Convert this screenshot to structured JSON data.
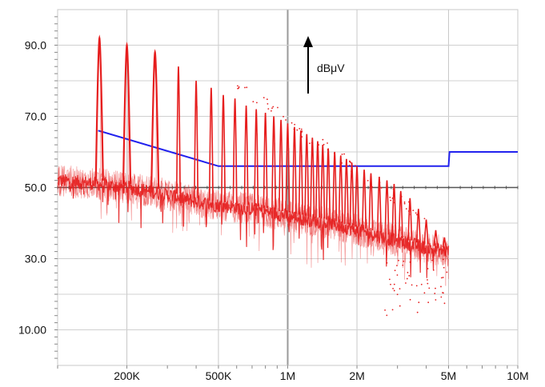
{
  "chart_data": {
    "type": "line",
    "x_scale": "log",
    "xlim": [
      100000,
      10000000
    ],
    "ylim": [
      0,
      100
    ],
    "unit_annotation": "dBμV",
    "x_ticks": [
      {
        "value": 200000,
        "label": "200K"
      },
      {
        "value": 500000,
        "label": "500K"
      },
      {
        "value": 1000000,
        "label": "1M"
      },
      {
        "value": 2000000,
        "label": "2M"
      },
      {
        "value": 5000000,
        "label": "5M"
      },
      {
        "value": 10000000,
        "label": "10M"
      }
    ],
    "y_ticks": [
      {
        "value": 10,
        "label": "10.00"
      },
      {
        "value": 30,
        "label": "30.0"
      },
      {
        "value": 50,
        "label": "50.0"
      },
      {
        "value": 70,
        "label": "70.0"
      },
      {
        "value": 90,
        "label": "90.0"
      }
    ],
    "grid": true,
    "reference_line": {
      "y": 50,
      "color": "#555555"
    },
    "limit_line": {
      "color": "#2222ee",
      "points": [
        [
          150000,
          66
        ],
        [
          500000,
          56
        ],
        [
          5000000,
          56
        ],
        [
          5050000,
          60
        ],
        [
          10000000,
          60
        ]
      ]
    },
    "series": [
      {
        "color": "#e61e1e",
        "peaks": [
          {
            "x": 152000,
            "y": 92
          },
          {
            "x": 200000,
            "y": 90
          },
          {
            "x": 265000,
            "y": 88
          },
          {
            "x": 335000,
            "y": 84
          },
          {
            "x": 400000,
            "y": 80
          },
          {
            "x": 465000,
            "y": 78
          },
          {
            "x": 525000,
            "y": 76
          },
          {
            "x": 590000,
            "y": 75
          },
          {
            "x": 660000,
            "y": 73
          },
          {
            "x": 730000,
            "y": 72
          },
          {
            "x": 800000,
            "y": 71
          },
          {
            "x": 870000,
            "y": 70
          },
          {
            "x": 935000,
            "y": 69
          },
          {
            "x": 1000000,
            "y": 68
          },
          {
            "x": 1070000,
            "y": 67
          },
          {
            "x": 1140000,
            "y": 66
          },
          {
            "x": 1210000,
            "y": 65
          },
          {
            "x": 1280000,
            "y": 64
          },
          {
            "x": 1350000,
            "y": 63
          },
          {
            "x": 1420000,
            "y": 62
          },
          {
            "x": 1500000,
            "y": 61
          },
          {
            "x": 1600000,
            "y": 60
          },
          {
            "x": 1700000,
            "y": 59
          },
          {
            "x": 1800000,
            "y": 58
          },
          {
            "x": 1900000,
            "y": 57
          },
          {
            "x": 2000000,
            "y": 56
          },
          {
            "x": 2150000,
            "y": 55
          },
          {
            "x": 2300000,
            "y": 54
          },
          {
            "x": 2500000,
            "y": 53
          },
          {
            "x": 2700000,
            "y": 52
          },
          {
            "x": 2900000,
            "y": 51
          },
          {
            "x": 3100000,
            "y": 49
          },
          {
            "x": 3400000,
            "y": 47
          },
          {
            "x": 3700000,
            "y": 44
          },
          {
            "x": 4000000,
            "y": 41
          },
          {
            "x": 4400000,
            "y": 38
          },
          {
            "x": 4800000,
            "y": 36
          }
        ],
        "baseline": [
          {
            "x": 100000,
            "y": 52
          },
          {
            "x": 150000,
            "y": 51
          },
          {
            "x": 200000,
            "y": 50
          },
          {
            "x": 300000,
            "y": 48
          },
          {
            "x": 400000,
            "y": 46
          },
          {
            "x": 500000,
            "y": 45
          },
          {
            "x": 700000,
            "y": 44
          },
          {
            "x": 1000000,
            "y": 42
          },
          {
            "x": 1500000,
            "y": 40
          },
          {
            "x": 2000000,
            "y": 38
          },
          {
            "x": 3000000,
            "y": 35
          },
          {
            "x": 4000000,
            "y": 33
          },
          {
            "x": 5000000,
            "y": 32
          }
        ]
      }
    ]
  }
}
